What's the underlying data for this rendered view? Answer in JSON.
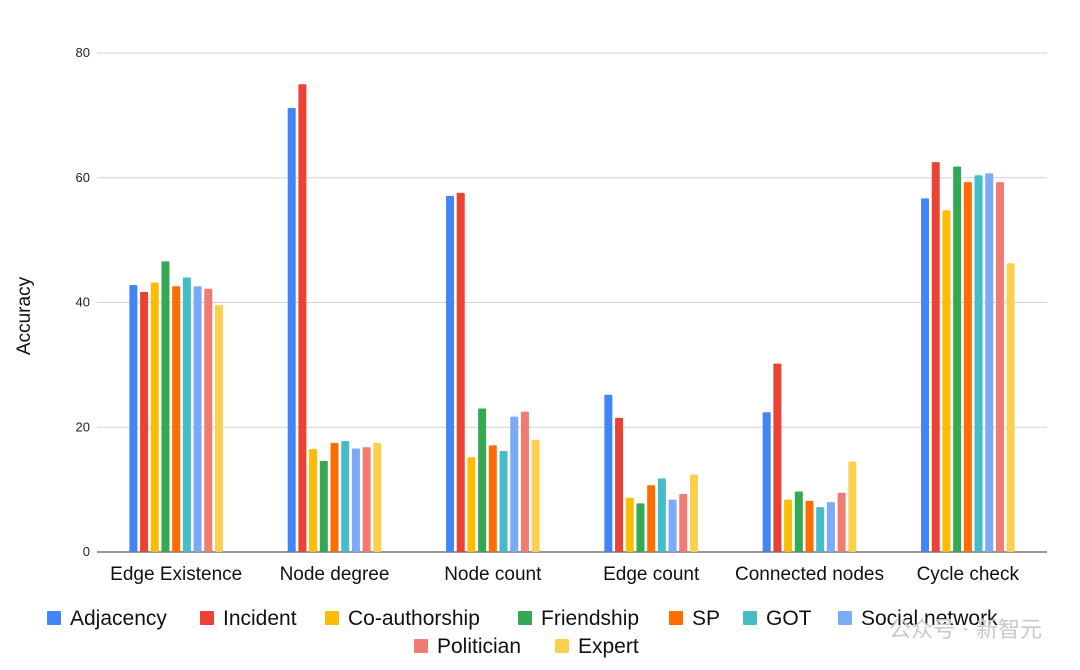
{
  "chart_data": {
    "type": "bar",
    "title": "",
    "xlabel": "",
    "ylabel": "Accuracy",
    "ylim": [
      0,
      80
    ],
    "yticks": [
      0,
      20,
      40,
      60,
      80
    ],
    "grid": true,
    "legend_position": "bottom",
    "categories": [
      "Edge Existence",
      "Node degree",
      "Node count",
      "Edge count",
      "Connected nodes",
      "Cycle check"
    ],
    "series": [
      {
        "name": "Adjacency",
        "color": "#4285f4",
        "values": [
          42.8,
          71.2,
          57.1,
          25.2,
          22.4,
          56.7
        ]
      },
      {
        "name": "Incident",
        "color": "#ea4335",
        "values": [
          41.7,
          75.0,
          57.6,
          21.5,
          30.2,
          62.5
        ]
      },
      {
        "name": "Co-authorship",
        "color": "#fbbc04",
        "values": [
          43.2,
          16.5,
          15.2,
          8.7,
          8.4,
          54.8
        ]
      },
      {
        "name": "Friendship",
        "color": "#34a853",
        "values": [
          46.6,
          14.6,
          23.0,
          7.8,
          9.7,
          61.8
        ]
      },
      {
        "name": "SP",
        "color": "#ff6d01",
        "values": [
          42.6,
          17.5,
          17.1,
          10.7,
          8.2,
          59.3
        ]
      },
      {
        "name": "GOT",
        "color": "#46bdc6",
        "values": [
          44.0,
          17.8,
          16.2,
          11.8,
          7.2,
          60.4
        ]
      },
      {
        "name": "Social network",
        "color": "#7baaf7",
        "values": [
          42.6,
          16.6,
          21.7,
          8.4,
          8.0,
          60.7
        ]
      },
      {
        "name": "Politician",
        "color": "#f07b72",
        "values": [
          42.2,
          16.8,
          22.5,
          9.3,
          9.5,
          59.3
        ]
      },
      {
        "name": "Expert",
        "color": "#fcd04f",
        "values": [
          39.6,
          17.5,
          18.0,
          12.4,
          14.5,
          46.3
        ]
      }
    ]
  },
  "watermark": "公众号 · 新智元"
}
